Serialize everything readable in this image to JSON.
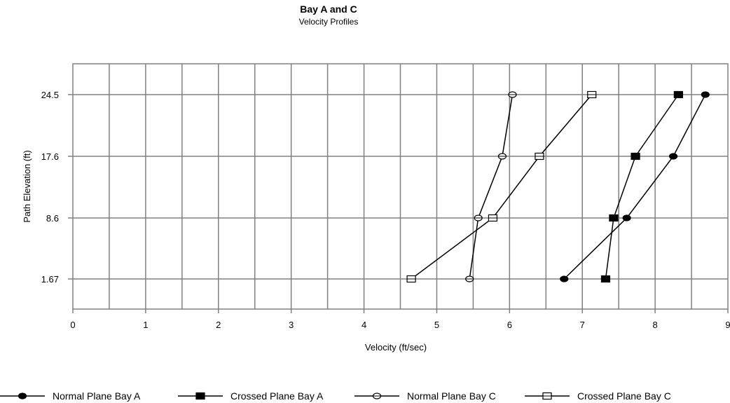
{
  "chart_data": {
    "type": "line",
    "title": "Bay  A and C",
    "subtitle": "Velocity Profiles",
    "xlabel": "Velocity  (ft/sec)",
    "ylabel": "Path Elevation  (ft)",
    "xlim": [
      0,
      9
    ],
    "x_ticks": [
      "0",
      "1",
      "2",
      "3",
      "4",
      "5",
      "6",
      "7",
      "8",
      "9"
    ],
    "y_categories": [
      "1.67",
      "8.6",
      "17.6",
      "24.5"
    ],
    "grid": true,
    "legend_position": "bottom",
    "series": [
      {
        "name": "Normal Plane Bay A",
        "marker": "filled-circle",
        "points": [
          {
            "x": 6.75,
            "y": "1.67"
          },
          {
            "x": 7.61,
            "y": "8.6"
          },
          {
            "x": 8.25,
            "y": "17.6"
          },
          {
            "x": 8.69,
            "y": "24.5"
          }
        ]
      },
      {
        "name": "Crossed Plane Bay A",
        "marker": "filled-square",
        "points": [
          {
            "x": 7.32,
            "y": "1.67"
          },
          {
            "x": 7.43,
            "y": "8.6"
          },
          {
            "x": 7.73,
            "y": "17.6"
          },
          {
            "x": 8.32,
            "y": "24.5"
          }
        ]
      },
      {
        "name": "Normal Plane Bay C",
        "marker": "open-circle",
        "points": [
          {
            "x": 5.45,
            "y": "1.67"
          },
          {
            "x": 5.57,
            "y": "8.6"
          },
          {
            "x": 5.9,
            "y": "17.6"
          },
          {
            "x": 6.04,
            "y": "24.5"
          }
        ]
      },
      {
        "name": "Crossed Plane Bay C",
        "marker": "open-square",
        "points": [
          {
            "x": 4.65,
            "y": "1.67"
          },
          {
            "x": 5.77,
            "y": "8.6"
          },
          {
            "x": 6.41,
            "y": "17.6"
          },
          {
            "x": 7.13,
            "y": "24.5"
          }
        ]
      }
    ]
  }
}
